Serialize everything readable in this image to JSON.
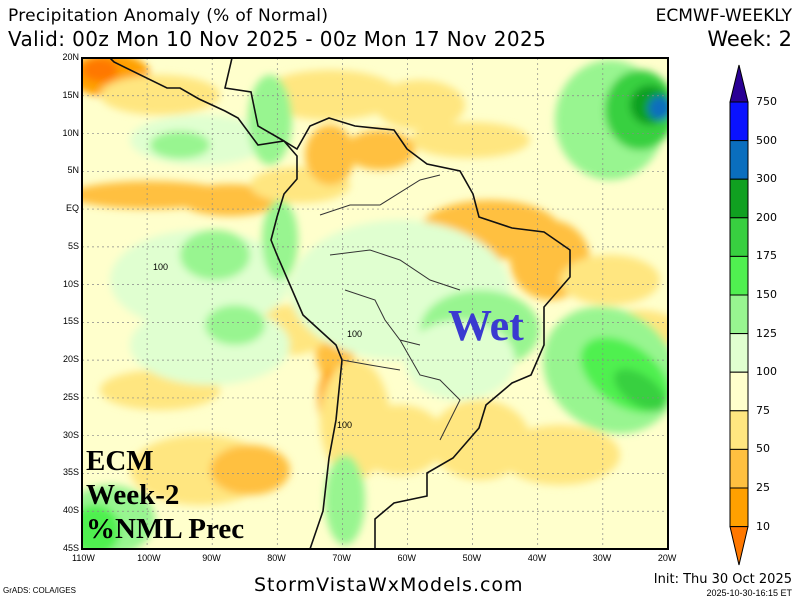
{
  "header": {
    "title": "Precipitation Anomaly (% of Normal)",
    "model": "ECMWF-WEEKLY",
    "valid": "Valid: 00z Mon 10 Nov 2025 - 00z Mon 17 Nov 2025",
    "week": "Week: 2"
  },
  "map": {
    "lat_labels": [
      "20N",
      "15N",
      "10N",
      "5N",
      "EQ",
      "5S",
      "10S",
      "15S",
      "20S",
      "25S",
      "30S",
      "35S",
      "40S",
      "45S"
    ],
    "lon_labels": [
      "110W",
      "100W",
      "90W",
      "80W",
      "70W",
      "60W",
      "50W",
      "40W",
      "30W",
      "20W"
    ],
    "contour_labels": [
      "100",
      "100",
      "100"
    ],
    "overlay_wet": "Wet",
    "overlay_lines": [
      "ECM",
      "Week-2",
      "%NML Prec"
    ]
  },
  "colorbar": {
    "levels": [
      "750",
      "500",
      "300",
      "200",
      "175",
      "150",
      "125",
      "100",
      "75",
      "50",
      "25",
      "10"
    ],
    "colors": [
      "#2a0095",
      "#0a12ff",
      "#0a6ebe",
      "#10a020",
      "#38d040",
      "#50f050",
      "#98f590",
      "#e0ffd0",
      "#ffffcc",
      "#ffe680",
      "#ffc040",
      "#ffa000",
      "#ff7800"
    ]
  },
  "footer": {
    "site": "StormVistaWxModels.com",
    "grads": "GrADS: COLA/IGES",
    "init": "Init: Thu 30 Oct 2025",
    "timestamp": "2025-10-30-16:15 ET"
  }
}
